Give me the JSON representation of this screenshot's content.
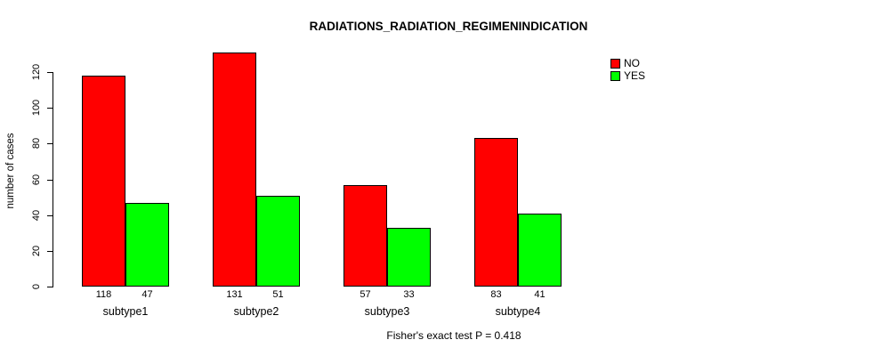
{
  "chart_data": {
    "type": "bar",
    "title": "RADIATIONS_RADIATION_REGIMENINDICATION",
    "categories": [
      "subtype1",
      "subtype2",
      "subtype3",
      "subtype4"
    ],
    "series": [
      {
        "name": "NO",
        "color": "#ff0000",
        "values": [
          118,
          131,
          57,
          83
        ]
      },
      {
        "name": "YES",
        "color": "#00ff00",
        "values": [
          47,
          51,
          33,
          41
        ]
      }
    ],
    "xlabel": "",
    "ylabel": "number of cases",
    "yticks": [
      0,
      20,
      40,
      60,
      80,
      100,
      120
    ],
    "ylim": [
      0,
      131
    ],
    "grid": false,
    "legend_position": "top-right",
    "bar_value_labels": true,
    "footer": "Fisher's exact test P = 0.418"
  }
}
